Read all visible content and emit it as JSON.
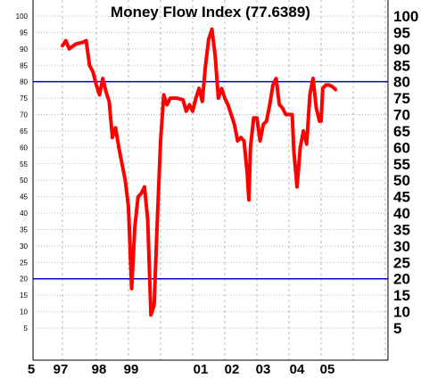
{
  "chart_data": {
    "type": "line",
    "title": "Money Flow Index (77.6389)",
    "xlabel": "",
    "ylabel": "",
    "ylim": [
      0,
      100
    ],
    "grid": true,
    "x_tick_labels": [
      "5",
      "97",
      "98",
      "99",
      "01",
      "02",
      "03",
      "04",
      "05"
    ],
    "y_ticks_left": [
      100,
      95,
      90,
      85,
      80,
      75,
      70,
      65,
      60,
      55,
      50,
      45,
      40,
      35,
      30,
      25,
      20,
      15,
      10,
      5
    ],
    "y_ticks_right": [
      100,
      95,
      90,
      85,
      80,
      75,
      70,
      65,
      60,
      55,
      50,
      45,
      40,
      35,
      30,
      25,
      20,
      15,
      10,
      5
    ],
    "reference_lines": [
      80,
      20
    ],
    "colors": {
      "series": "#ff0000",
      "reference": "#0000cc",
      "grid": "#bbbbbb"
    },
    "series": [
      {
        "values": [
          [
            1997.0,
            91
          ],
          [
            1997.1,
            92.5
          ],
          [
            1997.2,
            90
          ],
          [
            1997.4,
            91.5
          ],
          [
            1997.6,
            92
          ],
          [
            1997.7,
            92.5
          ],
          [
            1997.8,
            85
          ],
          [
            1997.9,
            83
          ],
          [
            1998.0,
            79
          ],
          [
            1998.1,
            76
          ],
          [
            1998.2,
            81
          ],
          [
            1998.3,
            77
          ],
          [
            1998.4,
            74
          ],
          [
            1998.5,
            63
          ],
          [
            1998.6,
            66
          ],
          [
            1998.7,
            60
          ],
          [
            1998.8,
            55
          ],
          [
            1998.9,
            50
          ],
          [
            1999.0,
            42
          ],
          [
            1999.1,
            17
          ],
          [
            1999.2,
            36
          ],
          [
            1999.3,
            45
          ],
          [
            1999.4,
            46
          ],
          [
            1999.5,
            48
          ],
          [
            1999.6,
            38
          ],
          [
            1999.7,
            9
          ],
          [
            1999.8,
            12
          ],
          [
            1999.9,
            38
          ],
          [
            2000.0,
            62
          ],
          [
            2000.1,
            76
          ],
          [
            2000.2,
            73
          ],
          [
            2000.3,
            75
          ],
          [
            2000.5,
            75
          ],
          [
            2000.7,
            74.5
          ],
          [
            2000.8,
            71
          ],
          [
            2000.9,
            73
          ],
          [
            2001.0,
            71
          ],
          [
            2001.1,
            75
          ],
          [
            2001.2,
            78
          ],
          [
            2001.3,
            74
          ],
          [
            2001.4,
            85
          ],
          [
            2001.5,
            93
          ],
          [
            2001.6,
            96
          ],
          [
            2001.7,
            88
          ],
          [
            2001.8,
            75
          ],
          [
            2001.9,
            78
          ],
          [
            2002.0,
            75
          ],
          [
            2002.1,
            73
          ],
          [
            2002.2,
            70
          ],
          [
            2002.3,
            67
          ],
          [
            2002.4,
            62
          ],
          [
            2002.5,
            63
          ],
          [
            2002.6,
            62
          ],
          [
            2002.7,
            52
          ],
          [
            2002.75,
            44
          ],
          [
            2002.8,
            60
          ],
          [
            2002.9,
            69
          ],
          [
            2003.0,
            69
          ],
          [
            2003.1,
            62
          ],
          [
            2003.2,
            67
          ],
          [
            2003.3,
            68
          ],
          [
            2003.4,
            73
          ],
          [
            2003.5,
            79
          ],
          [
            2003.6,
            81
          ],
          [
            2003.7,
            73
          ],
          [
            2003.8,
            72
          ],
          [
            2003.9,
            70
          ],
          [
            2004.0,
            70
          ],
          [
            2004.1,
            70
          ],
          [
            2004.15,
            59
          ],
          [
            2004.25,
            48
          ],
          [
            2004.35,
            60
          ],
          [
            2004.45,
            65
          ],
          [
            2004.55,
            61
          ],
          [
            2004.65,
            76
          ],
          [
            2004.75,
            81
          ],
          [
            2004.85,
            72
          ],
          [
            2004.95,
            68
          ],
          [
            2005.0,
            68
          ],
          [
            2005.05,
            78
          ],
          [
            2005.15,
            79
          ],
          [
            2005.25,
            79
          ],
          [
            2005.35,
            78.5
          ],
          [
            2005.45,
            77.6
          ]
        ]
      }
    ]
  }
}
